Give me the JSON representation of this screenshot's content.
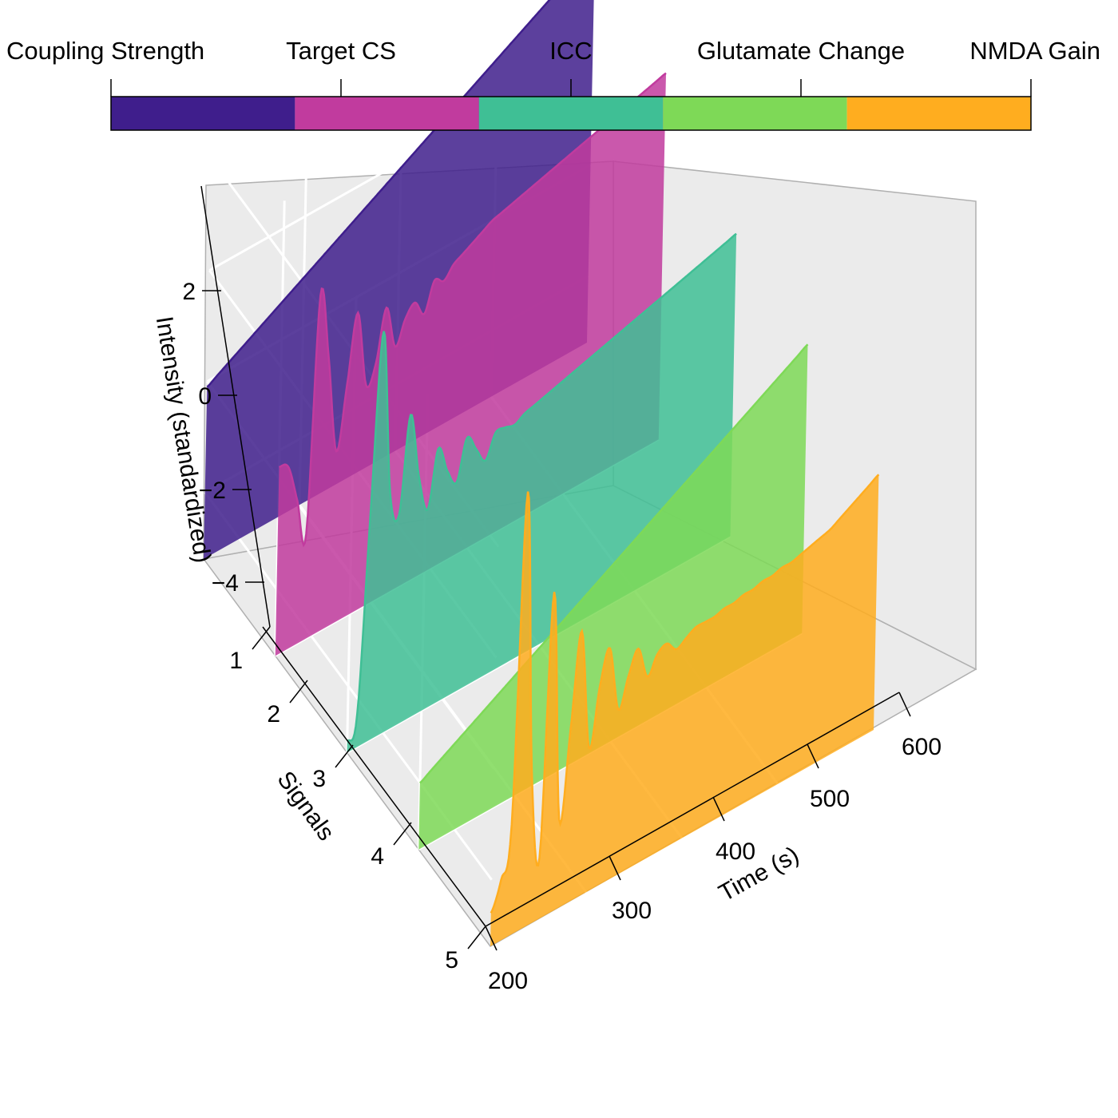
{
  "chart_data": {
    "type": "area",
    "x": [
      200,
      210,
      220,
      230,
      240,
      250,
      260,
      270,
      280,
      290,
      300,
      310,
      320,
      330,
      340,
      350,
      360,
      370,
      380,
      390,
      400,
      410,
      420,
      430,
      440,
      450,
      460,
      470,
      480,
      490,
      500,
      510,
      520,
      530,
      540,
      550,
      560,
      570,
      580,
      590,
      600
    ],
    "series": [
      {
        "name": "Coupling Strength",
        "signal": 1,
        "color": "#3f1e8c",
        "values": [
          -2.1,
          -2.0,
          -1.9,
          -1.8,
          -1.7,
          -1.6,
          -1.5,
          -1.4,
          -1.3,
          -1.2,
          -1.1,
          -1.0,
          -0.9,
          -0.8,
          -0.7,
          -0.6,
          -0.5,
          -0.4,
          -0.3,
          -0.2,
          -0.1,
          0.0,
          0.1,
          0.2,
          0.3,
          0.4,
          0.5,
          0.6,
          0.7,
          0.8,
          0.9,
          1.0,
          1.1,
          1.2,
          1.3,
          1.4,
          1.5,
          1.6,
          1.7,
          1.8,
          1.9
        ]
      },
      {
        "name": "Target CS",
        "signal": 2,
        "color": "#c13b9e",
        "values": [
          -1.8,
          -1.9,
          -2.6,
          -3.3,
          0.9,
          -0.3,
          -2.1,
          -1.0,
          0.2,
          -1.2,
          -0.9,
          0.0,
          -0.8,
          -0.4,
          -0.2,
          -0.5,
          0.0,
          -0.1,
          0.1,
          0.2,
          0.3,
          0.4,
          0.5,
          0.55,
          0.6,
          0.65,
          0.7,
          0.75,
          0.8,
          0.85,
          0.9,
          0.95,
          1.0,
          1.05,
          1.1,
          1.15,
          1.2,
          1.25,
          1.3,
          1.35,
          1.4
        ]
      },
      {
        "name": "ICC",
        "signal": 3,
        "color": "#3fbf95",
        "values": [
          -5.0,
          -4.6,
          -1.0,
          2.1,
          -0.9,
          -1.4,
          0.3,
          -0.9,
          -1.6,
          -0.6,
          -1.1,
          -1.4,
          -0.7,
          -1.0,
          -1.3,
          -0.9,
          -0.9,
          -0.95,
          -0.85,
          -0.8,
          -0.75,
          -0.7,
          -0.65,
          -0.6,
          -0.55,
          -0.5,
          -0.45,
          -0.4,
          -0.35,
          -0.3,
          -0.25,
          -0.2,
          -0.15,
          -0.1,
          -0.05,
          0.0,
          0.05,
          0.1,
          0.15,
          0.2,
          0.25
        ]
      },
      {
        "name": "Glutamate Change",
        "signal": 4,
        "color": "#7ed957",
        "values": [
          -4.0,
          -3.9,
          -3.8,
          -3.7,
          -3.6,
          -3.5,
          -3.4,
          -3.3,
          -3.2,
          -3.1,
          -3.0,
          -2.9,
          -2.8,
          -2.7,
          -2.6,
          -2.5,
          -2.4,
          -2.3,
          -2.2,
          -2.1,
          -2.0,
          -1.9,
          -1.8,
          -1.7,
          -1.6,
          -1.5,
          -1.4,
          -1.3,
          -1.2,
          -1.1,
          -1.0,
          -0.9,
          -0.8,
          -0.7,
          -0.6,
          -0.5,
          -0.4,
          -0.3,
          -0.2,
          -0.1,
          0.0
        ]
      },
      {
        "name": "NMDA Gain",
        "signal": 5,
        "color": "#ffad1f",
        "values": [
          -4.6,
          -4.1,
          -3.2,
          2.7,
          -2.4,
          -4.1,
          0.6,
          -3.6,
          -2.1,
          -0.4,
          -2.6,
          -1.6,
          -1.0,
          -2.2,
          -1.7,
          -1.3,
          -1.9,
          -1.6,
          -1.5,
          -1.7,
          -1.6,
          -1.5,
          -1.5,
          -1.5,
          -1.45,
          -1.45,
          -1.4,
          -1.4,
          -1.35,
          -1.35,
          -1.3,
          -1.3,
          -1.25,
          -1.2,
          -1.15,
          -1.1,
          -1.0,
          -0.9,
          -0.8,
          -0.7,
          -0.6
        ]
      }
    ],
    "legend": {
      "labels": [
        "Coupling Strength",
        "Target CS",
        "ICC",
        "Glutamate Change",
        "NMDA Gain"
      ],
      "placement": "top"
    },
    "axes": {
      "time": {
        "label": "Time (s)",
        "range": [
          200,
          600
        ],
        "ticks": [
          "200",
          "300",
          "400",
          "500",
          "600"
        ]
      },
      "signals": {
        "label": "Signals",
        "range": [
          1,
          5
        ],
        "ticks": [
          "1",
          "2",
          "3",
          "4",
          "5"
        ]
      },
      "intensity": {
        "label": "Intensity (standardized)",
        "range": [
          -5,
          3
        ],
        "ticks": [
          "2",
          "0",
          "−2",
          "−4"
        ]
      }
    },
    "grid": true,
    "fill_opacity": 0.85
  }
}
